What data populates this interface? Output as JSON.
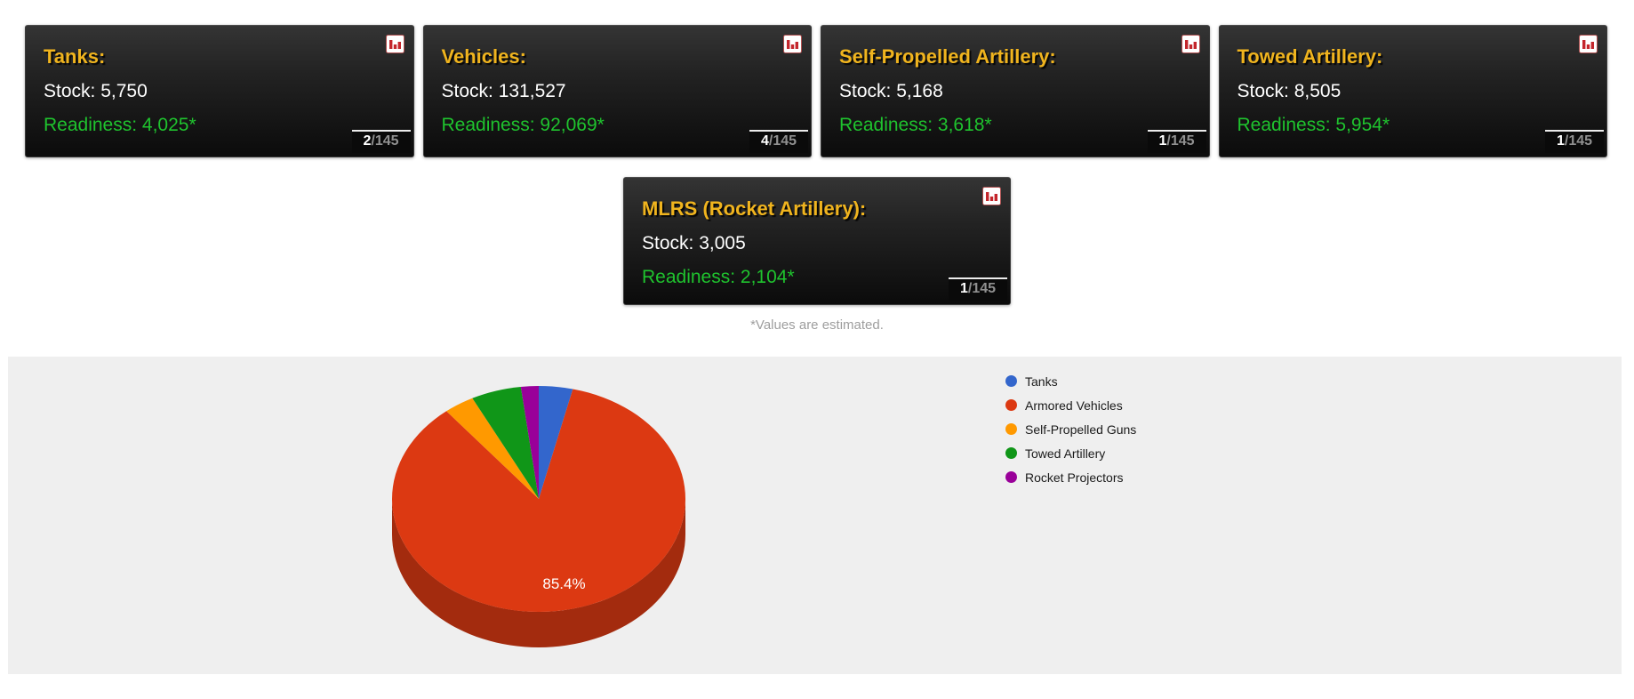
{
  "theme": {
    "card_title": "#F0B41E",
    "stock": "#FFFFFF",
    "readiness": "#1FC32E",
    "badge_number": "#FFFFFF",
    "badge_rest": "#909090",
    "note": "#9E9E9E",
    "panel_bg": "#EFEFEF",
    "pie_label": "#FFFFFF",
    "icon_bar_red": "#C4262C"
  },
  "cards": [
    {
      "title": "Tanks:",
      "stock_label": "Stock:",
      "stock_value": "5,750",
      "readiness_label": "Readiness:",
      "readiness_value": "4,025*",
      "badge_current": "2",
      "badge_rest": "/145"
    },
    {
      "title": "Vehicles:",
      "stock_label": "Stock:",
      "stock_value": "131,527",
      "readiness_label": "Readiness:",
      "readiness_value": "92,069*",
      "badge_current": "4",
      "badge_rest": "/145"
    },
    {
      "title": "Self-Propelled Artillery:",
      "stock_label": "Stock:",
      "stock_value": "5,168",
      "readiness_label": "Readiness:",
      "readiness_value": "3,618*",
      "badge_current": "1",
      "badge_rest": "/145"
    },
    {
      "title": "Towed Artillery:",
      "stock_label": "Stock:",
      "stock_value": "8,505",
      "readiness_label": "Readiness:",
      "readiness_value": "5,954*",
      "badge_current": "1",
      "badge_rest": "/145"
    },
    {
      "title": "MLRS (Rocket Artillery):",
      "stock_label": "Stock:",
      "stock_value": "3,005",
      "readiness_label": "Readiness:",
      "readiness_value": "2,104*",
      "badge_current": "1",
      "badge_rest": "/145"
    }
  ],
  "note": "*Values are estimated.",
  "chart_data": {
    "type": "pie",
    "is3d": true,
    "title": "",
    "legend_position": "right",
    "background": "#EFEFEF",
    "slices": [
      {
        "label": "Tanks",
        "value": 5750,
        "percent": 3.7,
        "color": "#3366CC"
      },
      {
        "label": "Armored Vehicles",
        "value": 131527,
        "percent": 85.4,
        "color": "#DC3912"
      },
      {
        "label": "Self-Propelled Guns",
        "value": 5168,
        "percent": 3.4,
        "color": "#FF9900"
      },
      {
        "label": "Towed Artillery",
        "value": 8505,
        "percent": 5.5,
        "color": "#109618"
      },
      {
        "label": "Rocket Projectors",
        "value": 3005,
        "percent": 2.0,
        "color": "#990099"
      }
    ],
    "side_color": "#A32B0E",
    "visible_label": "85.4%",
    "label_color": "#FFFFFF"
  }
}
